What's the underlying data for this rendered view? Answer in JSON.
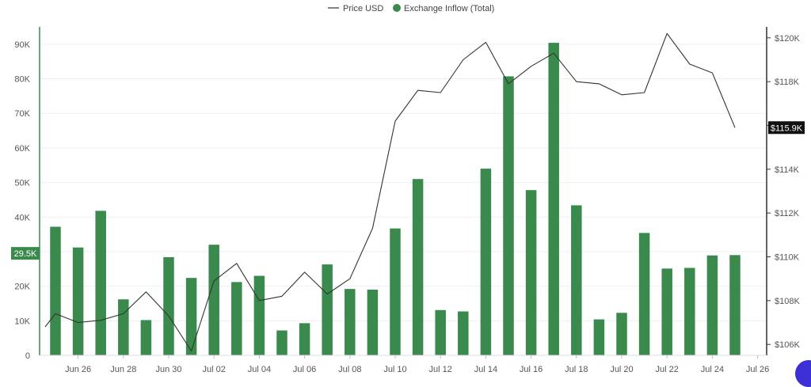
{
  "chart_data": {
    "type": "bar",
    "legend": {
      "placement": "top-center",
      "entries": [
        {
          "label": "Price USD",
          "marker": "line",
          "color": "#333333"
        },
        {
          "label": "Exchange Inflow (Total)",
          "marker": "dot",
          "color": "#3a8a4e"
        }
      ]
    },
    "x_tick_labels": [
      "Jun 26",
      "Jun 28",
      "Jun 30",
      "Jul 02",
      "Jul 04",
      "Jul 06",
      "Jul 08",
      "Jul 10",
      "Jul 12",
      "Jul 14",
      "Jul 16",
      "Jul 18",
      "Jul 20",
      "Jul 22",
      "Jul 24",
      "Jul 26"
    ],
    "left_axis": {
      "ylim": [
        0,
        95000
      ],
      "ticks": [
        0,
        10000,
        20000,
        30000,
        40000,
        50000,
        60000,
        70000,
        80000,
        90000
      ],
      "tick_labels": [
        "0",
        "10K",
        "20K",
        "30K",
        "40K",
        "50K",
        "60K",
        "70K",
        "80K",
        "90K"
      ],
      "crosshair_value": 29500,
      "crosshair_label": "29.5K",
      "color": "#3a8a4e"
    },
    "right_axis": {
      "ylim": [
        105500,
        120500
      ],
      "ticks": [
        106000,
        108000,
        110000,
        112000,
        114000,
        116000,
        118000,
        120000
      ],
      "tick_labels": [
        "$106K",
        "$108K",
        "$110K",
        "$112K",
        "$114K",
        "$116K",
        "$118K",
        "$120K"
      ],
      "current_value": 115900,
      "current_label": "$115.9K",
      "color": "#111111"
    },
    "series": [
      {
        "name": "Exchange Inflow (Total)",
        "type": "bar",
        "axis": "left",
        "color": "#3a8a4e",
        "x": [
          "Jun 25",
          "Jun 26",
          "Jun 27",
          "Jun 28",
          "Jun 29",
          "Jun 30",
          "Jul 01",
          "Jul 02",
          "Jul 03",
          "Jul 04",
          "Jul 05",
          "Jul 06",
          "Jul 07",
          "Jul 08",
          "Jul 09",
          "Jul 10",
          "Jul 11",
          "Jul 12",
          "Jul 13",
          "Jul 14",
          "Jul 15",
          "Jul 16",
          "Jul 17",
          "Jul 18",
          "Jul 19",
          "Jul 20",
          "Jul 21",
          "Jul 22",
          "Jul 23",
          "Jul 24",
          "Jul 25"
        ],
        "values": [
          37200,
          31200,
          41800,
          16200,
          10200,
          28400,
          22400,
          32000,
          21200,
          23000,
          7200,
          9300,
          26300,
          19200,
          19000,
          36700,
          51000,
          13100,
          12700,
          54000,
          80700,
          47800,
          90400,
          43400,
          10400,
          12300,
          35400,
          25100,
          25300,
          28900,
          29000
        ]
      },
      {
        "name": "Price USD",
        "type": "line",
        "axis": "right",
        "color": "#333333",
        "x": [
          "Jun 24",
          "Jun 25",
          "Jun 26",
          "Jun 27",
          "Jun 28",
          "Jun 29",
          "Jun 30",
          "Jul 01",
          "Jul 02",
          "Jul 03",
          "Jul 04",
          "Jul 05",
          "Jul 06",
          "Jul 07",
          "Jul 08",
          "Jul 09",
          "Jul 10",
          "Jul 11",
          "Jul 12",
          "Jul 13",
          "Jul 14",
          "Jul 15",
          "Jul 16",
          "Jul 17",
          "Jul 18",
          "Jul 19",
          "Jul 20",
          "Jul 21",
          "Jul 22",
          "Jul 23",
          "Jul 24",
          "Jul 25"
        ],
        "values": [
          106800,
          107400,
          107000,
          107100,
          107400,
          108400,
          107300,
          105700,
          108900,
          109700,
          108000,
          108200,
          109300,
          108300,
          109000,
          111300,
          116200,
          117600,
          117500,
          119000,
          119800,
          117900,
          118700,
          119300,
          118000,
          117900,
          117400,
          117500,
          120200,
          118800,
          118400,
          115900
        ]
      }
    ]
  }
}
